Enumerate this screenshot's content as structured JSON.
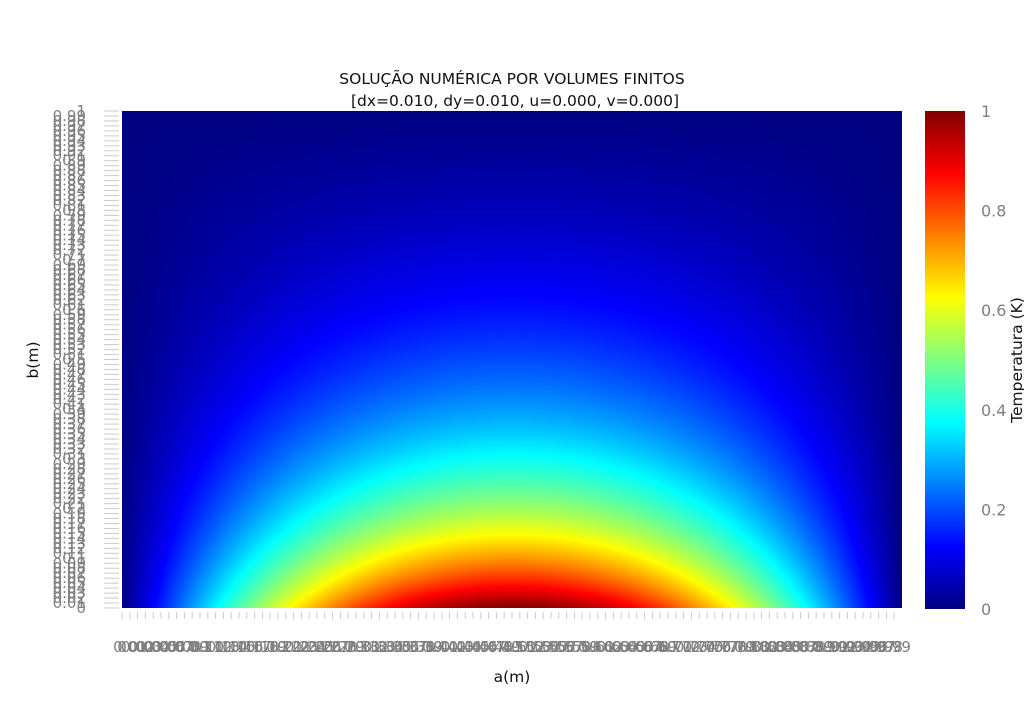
{
  "chart_data": {
    "type": "heatmap",
    "title": "SOLUÇÃO NUMÉRICA POR VOLUMES FINITOS",
    "subtitle": "[dx=0.010, dy=0.010, u=0.000, v=0.000]",
    "xlabel": "a(m)",
    "ylabel": "b(m)",
    "colorbar_label": "Temperatura (K)",
    "xlim": [
      0,
      1
    ],
    "ylim": [
      0,
      1
    ],
    "dx": 0.01,
    "dy": 0.01,
    "u": 0,
    "v": 0,
    "x_ticks": [
      "0",
      "0.01",
      "0.02",
      "0.03",
      "0.04",
      "0.05",
      "0.06",
      "0.07",
      "0.08",
      "0.09",
      "0.1",
      "0.11",
      "0.12",
      "0.13",
      "0.14",
      "0.15",
      "0.16",
      "0.17",
      "0.18",
      "0.19",
      "0.2",
      "0.21",
      "0.22",
      "0.23",
      "0.24",
      "0.25",
      "0.26",
      "0.27",
      "0.28",
      "0.29",
      "0.3",
      "0.31",
      "0.32",
      "0.33",
      "0.34",
      "0.35",
      "0.36",
      "0.37",
      "0.38",
      "0.39",
      "0.4",
      "0.41",
      "0.42",
      "0.43",
      "0.44",
      "0.45",
      "0.46",
      "0.47",
      "0.48",
      "0.49",
      "0.5",
      "0.51",
      "0.52",
      "0.53",
      "0.54",
      "0.55",
      "0.56",
      "0.57",
      "0.58",
      "0.59",
      "0.6",
      "0.61",
      "0.62",
      "0.63",
      "0.64",
      "0.65",
      "0.66",
      "0.67",
      "0.68",
      "0.69",
      "0.7",
      "0.71",
      "0.72",
      "0.73",
      "0.74",
      "0.75",
      "0.76",
      "0.77",
      "0.78",
      "0.79",
      "0.8",
      "0.81",
      "0.82",
      "0.83",
      "0.84",
      "0.85",
      "0.86",
      "0.87",
      "0.88",
      "0.89",
      "0.9",
      "0.91",
      "0.92",
      "0.93",
      "0.94",
      "0.95",
      "0.96",
      "0.97",
      "0.98",
      "0.99"
    ],
    "y_ticks": [
      "0",
      "0.01",
      "0.02",
      "0.03",
      "0.04",
      "0.05",
      "0.06",
      "0.07",
      "0.08",
      "0.09",
      "0.1",
      "0.11",
      "0.12",
      "0.13",
      "0.14",
      "0.15",
      "0.16",
      "0.17",
      "0.18",
      "0.19",
      "0.2",
      "0.21",
      "0.22",
      "0.23",
      "0.24",
      "0.25",
      "0.26",
      "0.27",
      "0.28",
      "0.29",
      "0.3",
      "0.31",
      "0.32",
      "0.33",
      "0.34",
      "0.35",
      "0.36",
      "0.37",
      "0.38",
      "0.39",
      "0.4",
      "0.41",
      "0.42",
      "0.43",
      "0.44",
      "0.45",
      "0.46",
      "0.47",
      "0.48",
      "0.49",
      "0.5",
      "0.51",
      "0.52",
      "0.53",
      "0.54",
      "0.55",
      "0.56",
      "0.57",
      "0.58",
      "0.59",
      "0.6",
      "0.61",
      "0.62",
      "0.63",
      "0.64",
      "0.65",
      "0.66",
      "0.67",
      "0.68",
      "0.69",
      "0.7",
      "0.71",
      "0.72",
      "0.73",
      "0.74",
      "0.75",
      "0.76",
      "0.77",
      "0.78",
      "0.79",
      "0.8",
      "0.81",
      "0.82",
      "0.83",
      "0.84",
      "0.85",
      "0.86",
      "0.87",
      "0.88",
      "0.89",
      "0.9",
      "0.91",
      "0.92",
      "0.93",
      "0.94",
      "0.95",
      "0.96",
      "0.97",
      "0.98",
      "0.99",
      "1"
    ],
    "colorscale": "jet",
    "zlim": [
      0,
      1
    ],
    "colorbar_ticks": [
      "0",
      "0.2",
      "0.4",
      "0.6",
      "0.8",
      "1"
    ],
    "field": "Temperature peaks at 1 at the bottom-centre (a=0.5, b=0) and decays to 0 toward the top and side edges",
    "colors": {
      "jet_stops": [
        "#000080",
        "#0000ff",
        "#00ffff",
        "#ffff00",
        "#ff0000",
        "#800000"
      ]
    }
  }
}
